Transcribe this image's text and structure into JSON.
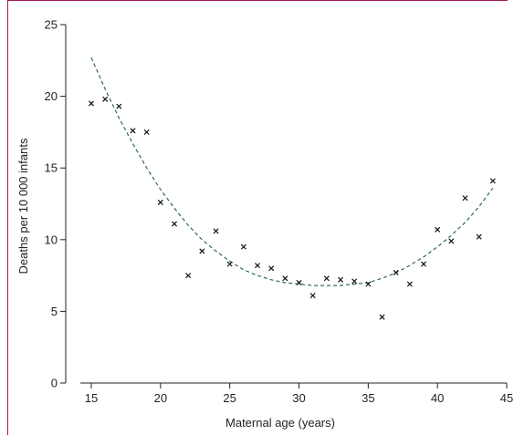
{
  "colors": {
    "frame": "#a3195b",
    "axis": "#222222",
    "marker": "#111111",
    "trend": "#2e6b5e"
  },
  "chart_data": {
    "type": "scatter",
    "title": "",
    "xlabel": "Maternal age (years)",
    "ylabel": "Deaths per 10 000 infants",
    "xlim": [
      13.5,
      45.5
    ],
    "ylim": [
      0,
      25
    ],
    "xticks": [
      15,
      20,
      25,
      30,
      35,
      40,
      45
    ],
    "yticks": [
      0,
      5,
      10,
      15,
      20,
      25
    ],
    "grid": false,
    "legend": "none",
    "marker": "x",
    "series": [
      {
        "x": [
          15,
          16,
          17,
          18,
          19,
          20,
          21,
          22,
          23,
          24,
          25,
          26,
          27,
          28,
          29,
          30,
          31,
          32,
          33,
          34,
          35,
          36,
          37,
          38,
          39,
          40,
          41,
          42,
          43,
          44
        ],
        "y": [
          19.5,
          19.8,
          19.3,
          17.6,
          17.5,
          12.6,
          11.1,
          7.5,
          9.2,
          10.6,
          8.3,
          9.5,
          8.2,
          8.0,
          7.3,
          7.0,
          6.1,
          7.3,
          7.2,
          7.1,
          6.9,
          4.6,
          7.7,
          6.9,
          8.3,
          10.7,
          9.9,
          12.9,
          10.2,
          14.1
        ]
      }
    ],
    "trendline": {
      "style": "dashed",
      "type": "quadratic",
      "x": [
        15,
        16,
        17,
        18,
        19,
        20,
        21,
        22,
        23,
        24,
        25,
        26,
        27,
        28,
        29,
        30,
        31,
        32,
        33,
        34,
        35,
        36,
        37,
        38,
        39,
        40,
        41,
        42,
        43,
        44
      ],
      "y": [
        22.7,
        20.5,
        18.5,
        16.7,
        15.0,
        13.5,
        12.2,
        11.0,
        10.0,
        9.2,
        8.5,
        7.9,
        7.5,
        7.2,
        7.0,
        6.9,
        6.8,
        6.8,
        6.8,
        6.9,
        7.0,
        7.3,
        7.7,
        8.2,
        8.8,
        9.5,
        10.3,
        11.2,
        12.3,
        13.6
      ]
    }
  }
}
